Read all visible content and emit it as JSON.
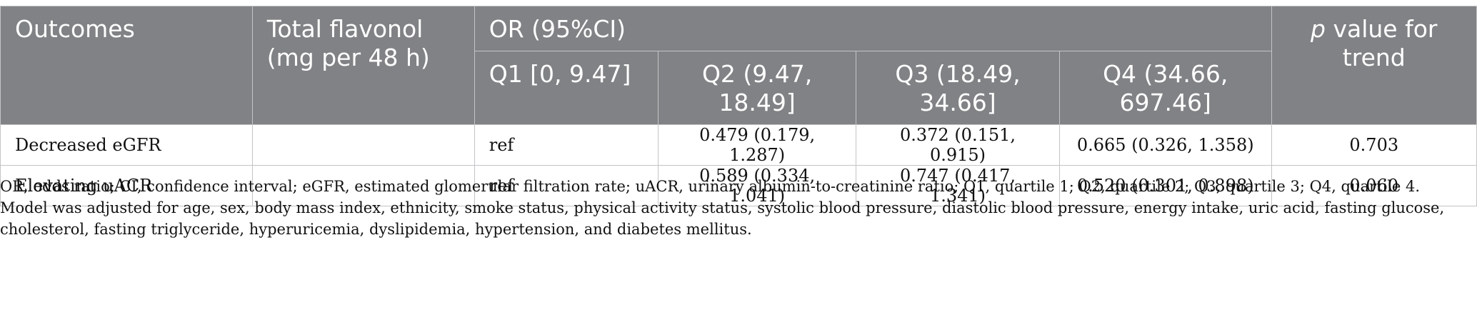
{
  "table": {
    "headers": {
      "outcomes": "Outcomes",
      "total_flavonol": "Total flavonol (mg per 48 h)",
      "or_group": "OR (95%CI)",
      "p_italic": "p",
      "p_rest": " value for trend",
      "q1": "Q1 [0, 9.47]",
      "q2": "Q2 (9.47, 18.49]",
      "q3": "Q3 (18.49, 34.66]",
      "q4": "Q4 (34.66, 697.46]"
    },
    "rows": [
      {
        "outcome": "Decreased eGFR",
        "flavonol": "",
        "q1": "ref",
        "q2": "0.479 (0.179, 1.287)",
        "q3": "0.372 (0.151, 0.915)",
        "q4": "0.665 (0.326, 1.358)",
        "p_trend": "0.703"
      },
      {
        "outcome": "Elevating uACR",
        "flavonol": "",
        "q1": "ref",
        "q2": "0.589 (0.334, 1.041)",
        "q3": "0.747 (0.417, 1.341)",
        "q4": "0.520 (0.301, 0.898)",
        "p_trend": "0.060"
      }
    ]
  },
  "footnotes": {
    "abbreviations": "OR, odds ratio; CI, confidence interval; eGFR, estimated glomerular filtration rate; uACR, urinary albumin-to-creatinine ratio; Q1, quartile 1; Q2, quartile 2; Q3, quartile 3; Q4, quartile 4.",
    "model": "Model was adjusted for age, sex, body mass index, ethnicity, smoke status, physical activity status, systolic blood pressure, diastolic blood pressure, energy intake, uric acid, fasting glucose, cholesterol, fasting triglyceride, hyperuricemia, dyslipidemia, hypertension, and diabetes mellitus."
  }
}
